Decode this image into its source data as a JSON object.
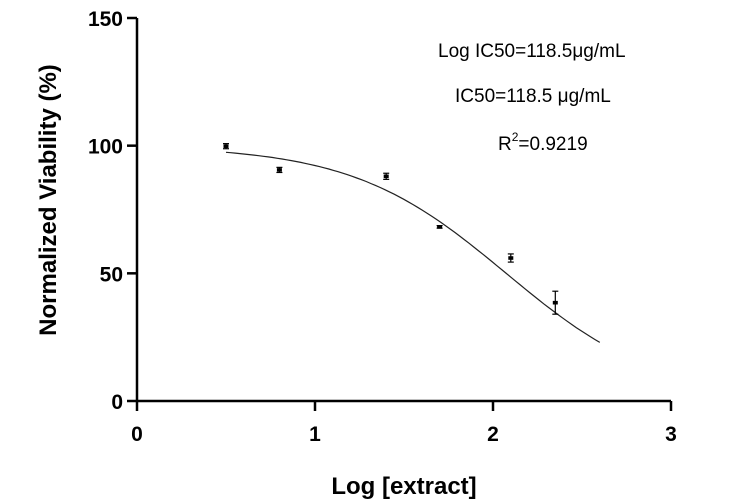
{
  "chart_data": {
    "type": "scatter",
    "xlabel": "Log [extract]",
    "ylabel": "Normalized Viability (%)",
    "xlim": [
      0,
      3
    ],
    "ylim": [
      0,
      150
    ],
    "x_ticks": [
      0,
      1,
      2,
      3
    ],
    "y_ticks": [
      0,
      50,
      100,
      150
    ],
    "x_tick_labels": [
      "0",
      "1",
      "2",
      "3"
    ],
    "y_tick_labels": [
      "0",
      "50",
      "100",
      "150"
    ],
    "grid": false,
    "legend": "none",
    "points": [
      {
        "x": 0.5,
        "y": 99.8,
        "err": 1.0
      },
      {
        "x": 0.8,
        "y": 90.5,
        "err": 1.0
      },
      {
        "x": 1.4,
        "y": 88.0,
        "err": 1.2
      },
      {
        "x": 1.7,
        "y": 68.2,
        "err": 0.5
      },
      {
        "x": 2.1,
        "y": 56.0,
        "err": 1.6
      },
      {
        "x": 2.35,
        "y": 38.5,
        "err": 4.5
      }
    ],
    "fit_curve": {
      "model": "four-parameter logistic",
      "top": 100,
      "bottom": 0,
      "log_ic50": 2.074,
      "hill_slope": -1.0,
      "x_range": [
        0.5,
        2.6
      ]
    },
    "annotations": {
      "log_ic50": "Log IC50=118.5μg/mL",
      "ic50": "IC50=118.5 μg/mL",
      "r2_prefix": "R",
      "r2_sup": "2",
      "r2_value": "=0.9219"
    },
    "colors": {
      "axis": "#000000",
      "points": "#000000",
      "curve": "#222222"
    }
  }
}
